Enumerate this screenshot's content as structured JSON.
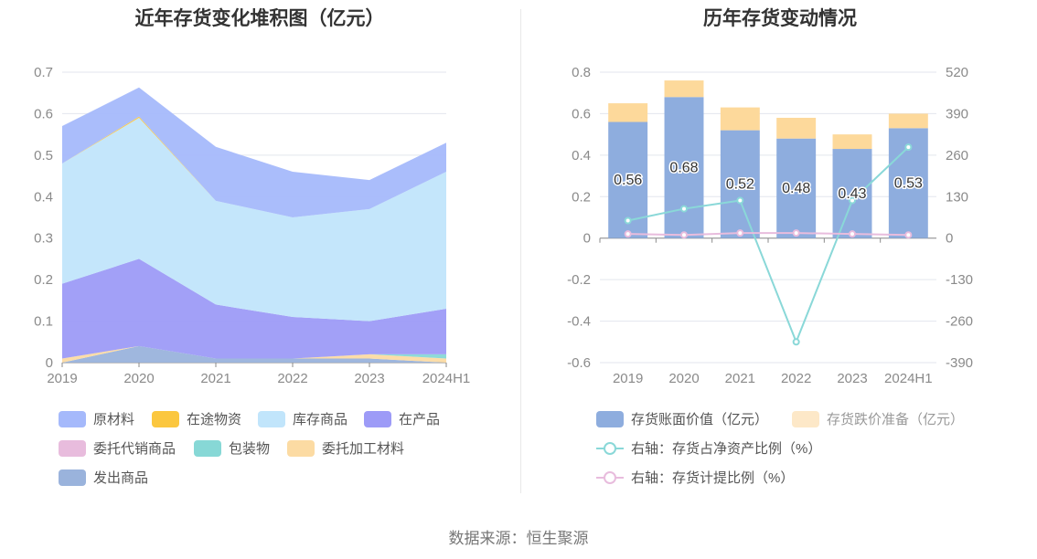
{
  "source_text": "数据来源：恒生聚源",
  "chart_data": [
    {
      "type": "area",
      "title": "近年存货变化堆积图（亿元）",
      "categories": [
        "2019",
        "2020",
        "2021",
        "2022",
        "2023",
        "2024H1"
      ],
      "yticks": [
        "0",
        "0.1",
        "0.2",
        "0.3",
        "0.4",
        "0.5",
        "0.6",
        "0.7"
      ],
      "ylim": [
        0,
        0.7
      ],
      "grid": true,
      "stacked": true,
      "legend_position": "bottom",
      "series": [
        {
          "name": "原材料",
          "color": "#a5b9fb",
          "values": [
            0.09,
            0.07,
            0.13,
            0.11,
            0.07,
            0.07
          ]
        },
        {
          "name": "在途物资",
          "color": "#fbc73f",
          "values": [
            0.0,
            0.003,
            0.0,
            0.0,
            0.0,
            0.0
          ]
        },
        {
          "name": "库存商品",
          "color": "#c1e5fb",
          "values": [
            0.29,
            0.34,
            0.25,
            0.24,
            0.27,
            0.33
          ]
        },
        {
          "name": "在产品",
          "color": "#9d9bf7",
          "values": [
            0.18,
            0.21,
            0.13,
            0.1,
            0.08,
            0.11
          ]
        },
        {
          "name": "委托代销商品",
          "color": "#e8bcdd",
          "values": [
            0.0,
            0.0,
            0.0,
            0.0,
            0.0,
            0.0
          ]
        },
        {
          "name": "包装物",
          "color": "#87d8d6",
          "values": [
            0.0,
            0.0,
            0.0,
            0.0,
            0.0,
            0.01
          ]
        },
        {
          "name": "委托加工材料",
          "color": "#fcdba3",
          "values": [
            0.01,
            0.0,
            0.0,
            0.0,
            0.01,
            0.01
          ]
        },
        {
          "name": "发出商品",
          "color": "#9ab3dc",
          "values": [
            0.0,
            0.04,
            0.01,
            0.01,
            0.01,
            0.0
          ]
        }
      ]
    },
    {
      "type": "bar",
      "title": "历年存货变动情况",
      "categories": [
        "2019",
        "2020",
        "2021",
        "2022",
        "2023",
        "2024H1"
      ],
      "ylim": [
        -0.6,
        0.8
      ],
      "yticks": [
        "-0.6",
        "-0.4",
        "-0.2",
        "0",
        "0.2",
        "0.4",
        "0.6",
        "0.8"
      ],
      "y2lim": [
        -390,
        520
      ],
      "y2ticks": [
        "-390",
        "-260",
        "-130",
        "0",
        "130",
        "260",
        "390",
        "520"
      ],
      "grid": true,
      "legend_position": "bottom",
      "series": [
        {
          "name": "存货账面价值（亿元）",
          "type": "bar",
          "color": "#8eadde",
          "values": [
            0.56,
            0.68,
            0.52,
            0.48,
            0.43,
            0.53
          ],
          "labels": [
            "0.56",
            "0.68",
            "0.52",
            "0.48",
            "0.43",
            "0.53"
          ]
        },
        {
          "name": "存货跌价准备（亿元）",
          "type": "bar",
          "color": "#fdd99b",
          "legend_color": "#fde8c8",
          "values": [
            0.09,
            0.08,
            0.11,
            0.1,
            0.07,
            0.07
          ]
        },
        {
          "name": "右轴：存货占净资产比例（%）",
          "type": "line",
          "axis": "right",
          "color": "#8ad8d8",
          "values": [
            55,
            92,
            118,
            -325,
            118,
            285
          ]
        },
        {
          "name": "右轴：存货计提比例（%）",
          "type": "line",
          "axis": "right",
          "color": "#e8bcdd",
          "values": [
            13,
            10,
            16,
            16,
            13,
            10
          ]
        }
      ]
    }
  ]
}
